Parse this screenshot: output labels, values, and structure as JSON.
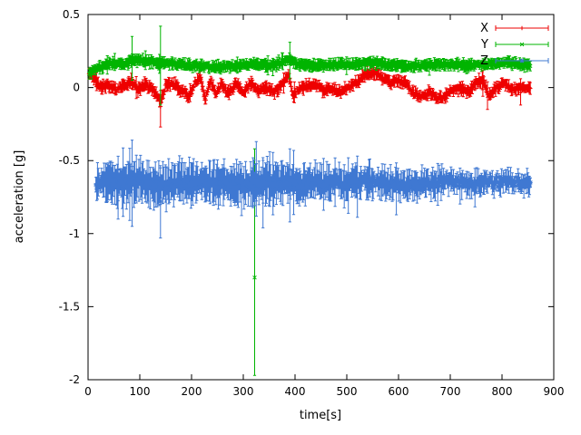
{
  "figure": {
    "background": "#ffffff",
    "axis_color": "#000000",
    "text_color": "#000000"
  },
  "chart_data": {
    "type": "scatter",
    "title": "",
    "xlabel": "time[s]",
    "ylabel": "acceleration [g]",
    "xlim": [
      0,
      900
    ],
    "ylim": [
      -2,
      0.5
    ],
    "xticks": [
      0,
      100,
      200,
      300,
      400,
      500,
      600,
      700,
      800,
      900
    ],
    "yticks": [
      0.5,
      0,
      -0.5,
      -1,
      -1.5,
      -2
    ],
    "grid": false,
    "legend_position": "top-right",
    "marker_style": "points-with-yerrorbars",
    "noise_seed": 7,
    "series": [
      {
        "name": "X",
        "color": "#ee0000",
        "marker": "plus",
        "t_start": 2,
        "t_end": 856,
        "dt": 1.6,
        "noise": 0.015,
        "err_base": 0.018,
        "err_var": 0.025,
        "trend": [
          [
            0,
            0.1
          ],
          [
            8,
            0.09
          ],
          [
            16,
            0.04
          ],
          [
            26,
            0
          ],
          [
            40,
            0.02
          ],
          [
            55,
            -0.02
          ],
          [
            70,
            0.02
          ],
          [
            85,
            0.045
          ],
          [
            95,
            -0.02
          ],
          [
            110,
            0.02
          ],
          [
            128,
            -0.02
          ],
          [
            140,
            -0.1
          ],
          [
            150,
            0.01
          ],
          [
            165,
            0.03
          ],
          [
            180,
            -0.02
          ],
          [
            195,
            -0.06
          ],
          [
            207,
            0.04
          ],
          [
            217,
            0.06
          ],
          [
            227,
            -0.08
          ],
          [
            237,
            0.05
          ],
          [
            247,
            -0.05
          ],
          [
            257,
            0.03
          ],
          [
            270,
            -0.04
          ],
          [
            285,
            0.02
          ],
          [
            300,
            -0.03
          ],
          [
            315,
            0.03
          ],
          [
            330,
            -0.02
          ],
          [
            345,
            0
          ],
          [
            360,
            -0.03
          ],
          [
            375,
            0.02
          ],
          [
            388,
            0.09
          ],
          [
            396,
            -0.05
          ],
          [
            406,
            -0.02
          ],
          [
            420,
            0.01
          ],
          [
            440,
            0.02
          ],
          [
            455,
            -0.02
          ],
          [
            470,
            0
          ],
          [
            490,
            -0.03
          ],
          [
            505,
            0
          ],
          [
            520,
            0.04
          ],
          [
            538,
            0.09
          ],
          [
            556,
            0.1
          ],
          [
            570,
            0.06
          ],
          [
            585,
            0.03
          ],
          [
            600,
            0.05
          ],
          [
            615,
            0.02
          ],
          [
            630,
            -0.04
          ],
          [
            645,
            -0.06
          ],
          [
            660,
            -0.03
          ],
          [
            675,
            -0.08
          ],
          [
            690,
            -0.06
          ],
          [
            705,
            -0.02
          ],
          [
            720,
            0
          ],
          [
            735,
            -0.03
          ],
          [
            750,
            0.04
          ],
          [
            763,
            0.05
          ],
          [
            775,
            -0.06
          ],
          [
            790,
            0
          ],
          [
            805,
            0.03
          ],
          [
            820,
            -0.01
          ],
          [
            840,
            0
          ],
          [
            856,
            -0.01
          ]
        ],
        "outliers": [
          {
            "t": 140,
            "v": -0.13,
            "hi": -0.02,
            "lo": -0.27
          },
          {
            "t": 763,
            "v": 0.03,
            "hi": 0.12,
            "lo": -0.06
          },
          {
            "t": 772,
            "v": -0.05,
            "hi": 0.04,
            "lo": -0.15
          },
          {
            "t": 836,
            "v": -0.02,
            "hi": 0.06,
            "lo": -0.12
          }
        ]
      },
      {
        "name": "Y",
        "color": "#00b400",
        "marker": "cross",
        "t_start": 2,
        "t_end": 856,
        "dt": 1.6,
        "noise": 0.012,
        "err_base": 0.02,
        "err_var": 0.022,
        "trend": [
          [
            0,
            0.1
          ],
          [
            10,
            0.11
          ],
          [
            25,
            0.14
          ],
          [
            45,
            0.17
          ],
          [
            70,
            0.16
          ],
          [
            90,
            0.19
          ],
          [
            110,
            0.18
          ],
          [
            140,
            0.17
          ],
          [
            170,
            0.16
          ],
          [
            200,
            0.15
          ],
          [
            240,
            0.14
          ],
          [
            280,
            0.15
          ],
          [
            320,
            0.16
          ],
          [
            360,
            0.15
          ],
          [
            385,
            0.19
          ],
          [
            410,
            0.16
          ],
          [
            450,
            0.15
          ],
          [
            500,
            0.16
          ],
          [
            550,
            0.17
          ],
          [
            600,
            0.15
          ],
          [
            650,
            0.15
          ],
          [
            700,
            0.16
          ],
          [
            740,
            0.15
          ],
          [
            780,
            0.16
          ],
          [
            810,
            0.17
          ],
          [
            856,
            0.15
          ]
        ],
        "outliers": [
          {
            "t": 85,
            "v": 0.19,
            "hi": 0.35,
            "lo": 0.05
          },
          {
            "t": 140,
            "v": 0.17,
            "hi": 0.42,
            "lo": -0.12
          },
          {
            "t": 322,
            "v": -1.3,
            "hi": -0.42,
            "lo": -1.97
          },
          {
            "t": 390,
            "v": 0.2,
            "hi": 0.31,
            "lo": 0.06
          }
        ]
      },
      {
        "name": "Z",
        "color": "#3f78d2",
        "marker": "star",
        "t_start": 15,
        "t_end": 856,
        "dt": 1.6,
        "noise": 0.035,
        "err_trend": [
          [
            15,
            0.1
          ],
          [
            80,
            0.13
          ],
          [
            150,
            0.12
          ],
          [
            250,
            0.12
          ],
          [
            350,
            0.12
          ],
          [
            450,
            0.1
          ],
          [
            550,
            0.09
          ],
          [
            650,
            0.08
          ],
          [
            750,
            0.07
          ],
          [
            856,
            0.06
          ]
        ],
        "trend": [
          [
            15,
            -0.66
          ],
          [
            40,
            -0.65
          ],
          [
            70,
            -0.66
          ],
          [
            100,
            -0.64
          ],
          [
            140,
            -0.68
          ],
          [
            180,
            -0.65
          ],
          [
            220,
            -0.64
          ],
          [
            260,
            -0.66
          ],
          [
            300,
            -0.67
          ],
          [
            330,
            -0.66
          ],
          [
            360,
            -0.64
          ],
          [
            400,
            -0.66
          ],
          [
            450,
            -0.65
          ],
          [
            500,
            -0.66
          ],
          [
            540,
            -0.64
          ],
          [
            580,
            -0.66
          ],
          [
            620,
            -0.67
          ],
          [
            660,
            -0.65
          ],
          [
            700,
            -0.64
          ],
          [
            740,
            -0.66
          ],
          [
            780,
            -0.65
          ],
          [
            820,
            -0.64
          ],
          [
            856,
            -0.65
          ]
        ],
        "outliers": [
          {
            "t": 58,
            "v": -0.67,
            "hi": -0.47,
            "lo": -0.9
          },
          {
            "t": 85,
            "v": -0.65,
            "hi": -0.36,
            "lo": -0.95
          },
          {
            "t": 140,
            "v": -0.78,
            "hi": -0.55,
            "lo": -1.03
          },
          {
            "t": 325,
            "v": -0.63,
            "hi": -0.37,
            "lo": -0.88
          },
          {
            "t": 338,
            "v": -0.7,
            "hi": -0.48,
            "lo": -0.96
          },
          {
            "t": 390,
            "v": -0.66,
            "hi": -0.42,
            "lo": -0.92
          }
        ]
      }
    ]
  }
}
